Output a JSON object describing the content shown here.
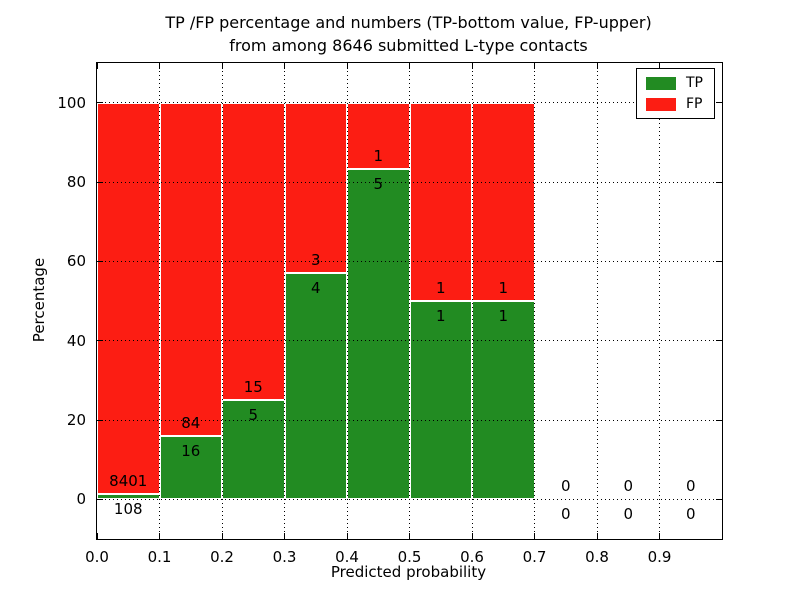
{
  "title": {
    "line1": "TP /FP percentage and numbers (TP-bottom value, FP-upper)",
    "line2": "from among 8646 submitted L-type contacts"
  },
  "axes": {
    "xlabel": "Predicted probability",
    "ylabel": "Percentage"
  },
  "legend": {
    "items": [
      {
        "label": "TP",
        "color": "#228b22"
      },
      {
        "label": "FP",
        "color": "#fc1d13"
      }
    ]
  },
  "chart_data": {
    "type": "bar",
    "stacked": true,
    "title": "TP /FP percentage and numbers (TP-bottom value, FP-upper)\nfrom among 8646 submitted L-type contacts",
    "xlabel": "Predicted probability",
    "ylabel": "Percentage",
    "xlim": [
      0.0,
      1.0
    ],
    "ylim": [
      -10,
      110
    ],
    "xticks": [
      "0.0",
      "0.1",
      "0.2",
      "0.3",
      "0.4",
      "0.5",
      "0.6",
      "0.7",
      "0.8",
      "0.9"
    ],
    "yticks": [
      0,
      20,
      40,
      60,
      80,
      100
    ],
    "grid": "dotted",
    "legend_position": "upper right",
    "colors": {
      "tp": "#228b22",
      "fp": "#fc1d13",
      "bar_edge": "#ffffff"
    },
    "series": [
      {
        "name": "TP",
        "role": "bottom-count",
        "values": [
          108,
          16,
          5,
          4,
          5,
          1,
          1,
          0,
          0,
          0
        ]
      },
      {
        "name": "FP",
        "role": "upper-count",
        "values": [
          8401,
          84,
          15,
          3,
          1,
          1,
          1,
          0,
          0,
          0
        ]
      }
    ],
    "bins": [
      {
        "range": [
          0.0,
          0.1
        ],
        "tp": 108,
        "fp": 8401,
        "tp_pct": 1.27,
        "fp_pct": 98.73
      },
      {
        "range": [
          0.1,
          0.2
        ],
        "tp": 16,
        "fp": 84,
        "tp_pct": 16.0,
        "fp_pct": 84.0
      },
      {
        "range": [
          0.2,
          0.3
        ],
        "tp": 5,
        "fp": 15,
        "tp_pct": 25.0,
        "fp_pct": 75.0
      },
      {
        "range": [
          0.3,
          0.4
        ],
        "tp": 4,
        "fp": 3,
        "tp_pct": 57.14,
        "fp_pct": 42.86
      },
      {
        "range": [
          0.4,
          0.5
        ],
        "tp": 5,
        "fp": 1,
        "tp_pct": 83.33,
        "fp_pct": 16.67
      },
      {
        "range": [
          0.5,
          0.6
        ],
        "tp": 1,
        "fp": 1,
        "tp_pct": 50.0,
        "fp_pct": 50.0
      },
      {
        "range": [
          0.6,
          0.7
        ],
        "tp": 1,
        "fp": 1,
        "tp_pct": 50.0,
        "fp_pct": 50.0
      },
      {
        "range": [
          0.7,
          0.8
        ],
        "tp": 0,
        "fp": 0,
        "tp_pct": 0,
        "fp_pct": 0
      },
      {
        "range": [
          0.8,
          0.9
        ],
        "tp": 0,
        "fp": 0,
        "tp_pct": 0,
        "fp_pct": 0
      },
      {
        "range": [
          0.9,
          1.0
        ],
        "tp": 0,
        "fp": 0,
        "tp_pct": 0,
        "fp_pct": 0
      }
    ]
  }
}
